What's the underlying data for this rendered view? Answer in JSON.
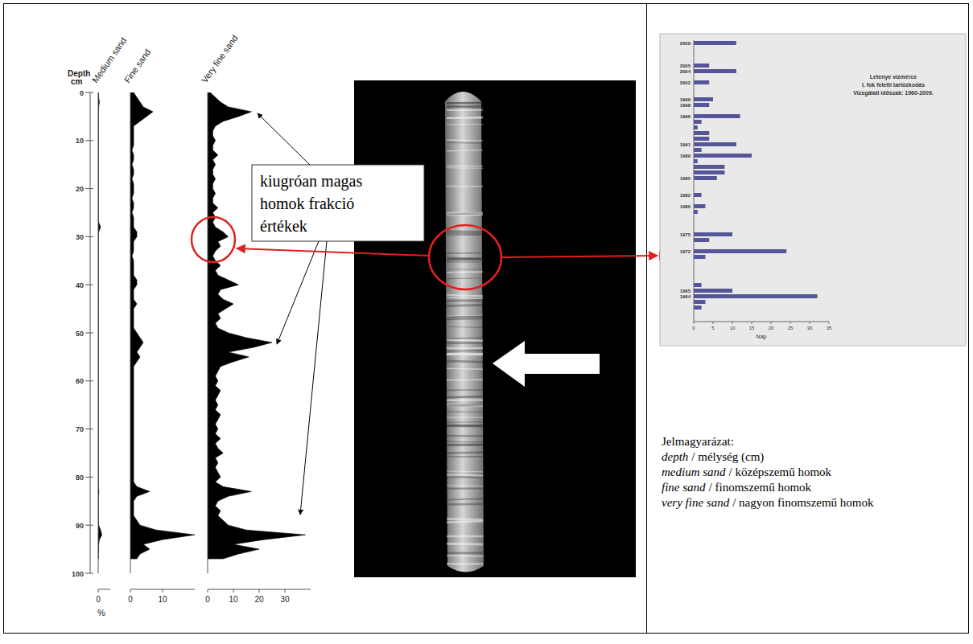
{
  "chart_data": [
    {
      "type": "area",
      "orientation": "horizontal",
      "title": "Medium sand",
      "ylabel": "Depth\ncm",
      "xlabel": "%",
      "color": "#000000",
      "y": [
        0,
        1,
        2,
        3,
        4,
        5,
        6,
        7,
        8,
        9,
        10,
        11,
        12,
        13,
        14,
        15,
        16,
        17,
        18,
        19,
        20,
        21,
        22,
        23,
        24,
        25,
        26,
        27,
        28,
        29,
        30,
        31,
        32,
        33,
        34,
        35,
        36,
        37,
        38,
        39,
        40,
        41,
        42,
        43,
        44,
        45,
        46,
        47,
        48,
        49,
        50,
        51,
        52,
        53,
        54,
        55,
        56,
        57,
        58,
        59,
        60,
        61,
        62,
        63,
        64,
        65,
        66,
        67,
        68,
        69,
        70,
        71,
        72,
        73,
        74,
        75,
        76,
        77,
        78,
        79,
        80,
        81,
        82,
        83,
        84,
        85,
        86,
        87,
        88,
        89,
        90,
        91,
        92,
        93,
        94,
        95,
        96,
        97
      ],
      "values": [
        0.1,
        0.2,
        0.5,
        0.2,
        0.1,
        0.1,
        0.1,
        0.1,
        0.1,
        0.1,
        0.1,
        0.1,
        0.1,
        0.1,
        0.1,
        0.1,
        0.1,
        0.1,
        0.1,
        0.1,
        0.1,
        0.1,
        0.1,
        0.1,
        0.1,
        0.1,
        0.1,
        0.2,
        1,
        0.2,
        0.1,
        0.1,
        0.1,
        0.1,
        0.1,
        0.1,
        0.1,
        0.1,
        0.1,
        0.1,
        0.1,
        0.1,
        0.1,
        0.1,
        0.1,
        0.1,
        0.1,
        0.1,
        0.1,
        0.1,
        0.1,
        0.1,
        0.1,
        0.1,
        0.1,
        0.1,
        0.1,
        0.1,
        0.1,
        0.1,
        0.1,
        0.1,
        0.1,
        0.1,
        0.1,
        0.1,
        0.1,
        0.1,
        0.1,
        0.1,
        0.1,
        0.1,
        0.1,
        0.1,
        0.1,
        0.1,
        0.1,
        0.1,
        0.1,
        0.1,
        0.1,
        0.1,
        0.1,
        0.3,
        0.1,
        0.1,
        0.1,
        0.1,
        0.1,
        0.1,
        0.2,
        1,
        1.5,
        0.5,
        0.2,
        0.2,
        0.1,
        0.1
      ],
      "xlim": [
        0,
        5
      ],
      "xticks": [
        0
      ],
      "ylim": [
        0,
        100
      ],
      "yticks": [
        0,
        10,
        20,
        30,
        40,
        50,
        60,
        70,
        80,
        90,
        100
      ]
    },
    {
      "type": "area",
      "orientation": "horizontal",
      "title": "Fine sand",
      "color": "#000000",
      "tick_labels": "x",
      "y": [
        0,
        1,
        2,
        3,
        4,
        5,
        6,
        7,
        8,
        9,
        10,
        11,
        12,
        13,
        14,
        15,
        16,
        17,
        18,
        19,
        20,
        21,
        22,
        23,
        24,
        25,
        26,
        27,
        28,
        29,
        30,
        31,
        32,
        33,
        34,
        35,
        36,
        37,
        38,
        39,
        40,
        41,
        42,
        43,
        44,
        45,
        46,
        47,
        48,
        49,
        50,
        51,
        52,
        53,
        54,
        55,
        56,
        57,
        58,
        59,
        60,
        61,
        62,
        63,
        64,
        65,
        66,
        67,
        68,
        69,
        70,
        71,
        72,
        73,
        74,
        75,
        76,
        77,
        78,
        79,
        80,
        81,
        82,
        83,
        84,
        85,
        86,
        87,
        88,
        89,
        90,
        91,
        92,
        93,
        94,
        95,
        96,
        97
      ],
      "values": [
        1,
        2,
        3,
        4,
        7,
        5,
        3,
        1,
        1,
        1,
        1,
        1,
        0.5,
        1,
        1,
        0.5,
        1,
        1,
        0.5,
        1,
        1,
        1,
        0.5,
        1,
        1,
        0.5,
        1,
        1,
        1,
        2,
        2,
        1,
        1,
        1,
        0.5,
        1,
        1,
        1,
        1,
        2,
        2,
        1,
        1,
        1,
        2,
        1,
        1,
        1,
        1,
        1,
        2,
        3,
        4,
        3,
        2,
        3,
        2,
        1,
        1,
        1,
        1,
        1,
        1,
        1,
        1,
        1,
        1,
        1,
        1,
        1,
        1,
        1,
        1,
        1,
        1,
        1,
        1,
        1,
        1,
        1,
        1,
        1,
        2,
        6,
        2,
        1,
        1,
        1,
        1,
        2,
        3,
        8,
        20,
        10,
        4,
        6,
        3,
        2
      ],
      "xlim": [
        0,
        20
      ],
      "xticks": [
        0,
        10
      ],
      "ylim": [
        0,
        100
      ]
    },
    {
      "type": "area",
      "orientation": "horizontal",
      "title": "Very fine sand",
      "color": "#000000",
      "tick_labels": "x",
      "y": [
        0,
        1,
        2,
        3,
        4,
        5,
        6,
        7,
        8,
        9,
        10,
        11,
        12,
        13,
        14,
        15,
        16,
        17,
        18,
        19,
        20,
        21,
        22,
        23,
        24,
        25,
        26,
        27,
        28,
        29,
        30,
        31,
        32,
        33,
        34,
        35,
        36,
        37,
        38,
        39,
        40,
        41,
        42,
        43,
        44,
        45,
        46,
        47,
        48,
        49,
        50,
        51,
        52,
        53,
        54,
        55,
        56,
        57,
        58,
        59,
        60,
        61,
        62,
        63,
        64,
        65,
        66,
        67,
        68,
        69,
        70,
        71,
        72,
        73,
        74,
        75,
        76,
        77,
        78,
        79,
        80,
        81,
        82,
        83,
        84,
        85,
        86,
        87,
        88,
        89,
        90,
        91,
        92,
        93,
        94,
        95,
        96,
        97
      ],
      "values": [
        1,
        3,
        5,
        8,
        17,
        12,
        6,
        3,
        2,
        2,
        3,
        2,
        2,
        4,
        2,
        3,
        2,
        2,
        3,
        2,
        2,
        3,
        2,
        2,
        4,
        2,
        3,
        2,
        3,
        6,
        8,
        4,
        5,
        3,
        2,
        3,
        5,
        3,
        4,
        8,
        12,
        5,
        4,
        6,
        10,
        7,
        4,
        5,
        3,
        4,
        8,
        15,
        25,
        18,
        8,
        16,
        10,
        5,
        4,
        3,
        4,
        3,
        5,
        4,
        3,
        4,
        3,
        5,
        4,
        3,
        4,
        3,
        5,
        3,
        4,
        6,
        3,
        4,
        3,
        4,
        5,
        3,
        6,
        17,
        8,
        4,
        3,
        5,
        4,
        6,
        8,
        15,
        38,
        22,
        10,
        20,
        12,
        6
      ],
      "xlim": [
        0,
        40
      ],
      "xticks": [
        0,
        10,
        20,
        30
      ],
      "ylim": [
        0,
        100
      ]
    },
    {
      "type": "bar",
      "orientation": "horizontal",
      "title": "Letenye vízmérce",
      "subtitle": [
        "I. fok feletti tartózkodás",
        "Vizsgálati időszak: 1960-2009."
      ],
      "xlabel": "Nap",
      "color": "#55559a",
      "categories": [
        "2009",
        null,
        null,
        null,
        "2005",
        "2004",
        null,
        "2002",
        null,
        null,
        "1999",
        "1998",
        null,
        "1996",
        null,
        null,
        null,
        null,
        "1991",
        null,
        "1989",
        null,
        null,
        null,
        "1985",
        null,
        null,
        "1982",
        null,
        "1980",
        null,
        null,
        null,
        null,
        "1975",
        null,
        null,
        "1972",
        null,
        null,
        null,
        null,
        null,
        null,
        "1965",
        "1964",
        null,
        null,
        null,
        null
      ],
      "values": [
        11,
        0,
        0,
        0,
        4,
        11,
        0,
        4,
        0,
        0,
        5,
        4,
        0,
        12,
        2,
        1,
        4,
        4,
        11,
        2,
        15,
        1,
        8,
        8,
        6,
        0,
        0,
        2,
        0,
        3,
        1,
        0,
        0,
        0,
        10,
        4,
        0,
        24,
        3,
        0,
        0,
        0,
        0,
        2,
        10,
        32,
        3,
        2,
        0,
        0
      ],
      "xlim": [
        0,
        35
      ],
      "xticks": [
        0,
        5,
        10,
        15,
        20,
        25,
        30,
        35
      ]
    }
  ],
  "callout": {
    "lines": [
      "kiugróan magas",
      "homok frakció",
      "értékek"
    ]
  },
  "key": {
    "title": "Jelmagyarázat:",
    "items": [
      {
        "term": "depth",
        "text": "/ mélység (cm)"
      },
      {
        "term": "medium sand",
        "text": "/ középszemű homok"
      },
      {
        "term": "fine sand",
        "text": "/ finomszemű homok"
      },
      {
        "term": "very fine sand",
        "text": "/ nagyon finomszemű homok"
      }
    ]
  }
}
